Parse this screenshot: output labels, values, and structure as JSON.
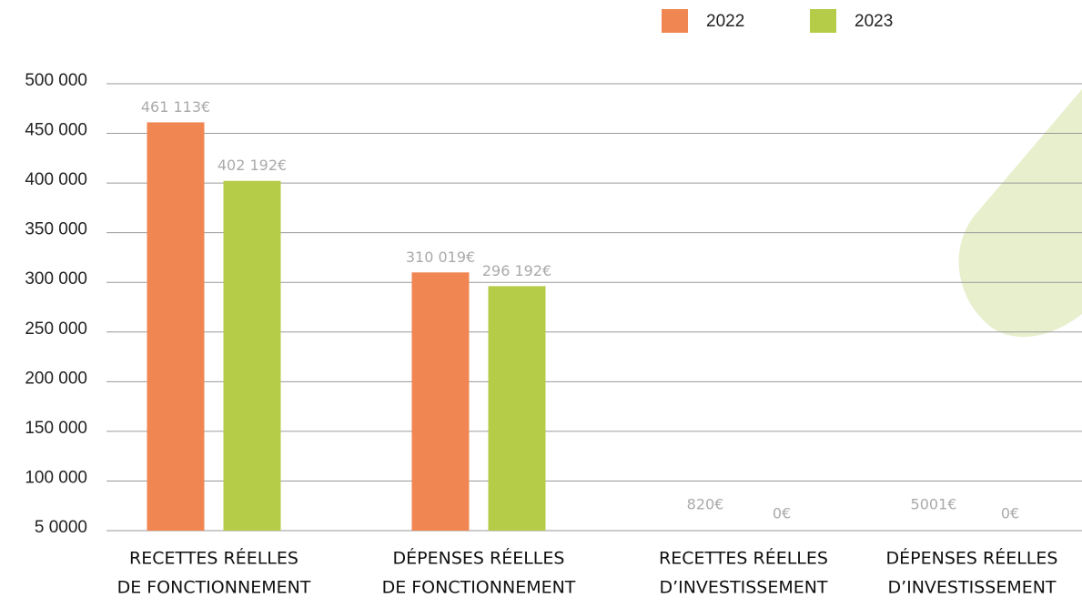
{
  "chart_data": {
    "type": "bar",
    "categories": [
      [
        "RECETTES RÉELLES",
        "DE FONCTIONNEMENT"
      ],
      [
        "DÉPENSES RÉELLES",
        "DE FONCTIONNEMENT"
      ],
      [
        "RECETTES RÉELLES",
        "D’INVESTISSEMENT"
      ],
      [
        "DÉPENSES RÉELLES",
        "D’INVESTISSEMENT"
      ]
    ],
    "series": [
      {
        "name": "2022",
        "color": "#f08752",
        "values": [
          461113,
          310019,
          820,
          5001
        ],
        "value_labels": [
          "461 113€",
          "310 019€",
          "820€",
          "5001€"
        ]
      },
      {
        "name": "2023",
        "color": "#b4cc47",
        "values": [
          402192,
          296192,
          0,
          0
        ],
        "value_labels": [
          "402 192€",
          "296 192€",
          "0€",
          "0€"
        ]
      }
    ],
    "ylim": [
      50000,
      500000
    ],
    "yticks": [
      {
        "value": 50000,
        "label": "5 0000"
      },
      {
        "value": 100000,
        "label": "100 000"
      },
      {
        "value": 150000,
        "label": "150 000"
      },
      {
        "value": 200000,
        "label": "200 000"
      },
      {
        "value": 250000,
        "label": "250 000"
      },
      {
        "value": 300000,
        "label": "300 000"
      },
      {
        "value": 350000,
        "label": "350 000"
      },
      {
        "value": 400000,
        "label": "400 000"
      },
      {
        "value": 450000,
        "label": "450 000"
      },
      {
        "value": 500000,
        "label": "500 000"
      }
    ],
    "grid": true,
    "legend": "top"
  }
}
